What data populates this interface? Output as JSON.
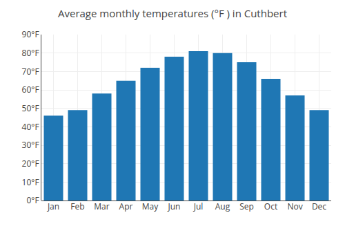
{
  "chart_data": {
    "type": "bar",
    "title": "Average monthly temperatures (°F ) in Cuthbert",
    "categories": [
      "Jan",
      "Feb",
      "Mar",
      "Apr",
      "May",
      "Jun",
      "Jul",
      "Aug",
      "Sep",
      "Oct",
      "Nov",
      "Dec"
    ],
    "values": [
      46,
      49,
      58,
      65,
      72,
      78,
      81,
      80,
      75,
      66,
      57,
      49
    ],
    "ylim": [
      0,
      90
    ],
    "yticks": [
      {
        "value": 0,
        "label": "0°F"
      },
      {
        "value": 10,
        "label": "10°F"
      },
      {
        "value": 20,
        "label": "20°F"
      },
      {
        "value": 30,
        "label": "30°F"
      },
      {
        "value": 40,
        "label": "40°F"
      },
      {
        "value": 50,
        "label": "50°F"
      },
      {
        "value": 60,
        "label": "60°F"
      },
      {
        "value": 70,
        "label": "70°F"
      },
      {
        "value": 80,
        "label": "80°F"
      },
      {
        "value": 90,
        "label": "90°F"
      }
    ],
    "grid": true
  }
}
